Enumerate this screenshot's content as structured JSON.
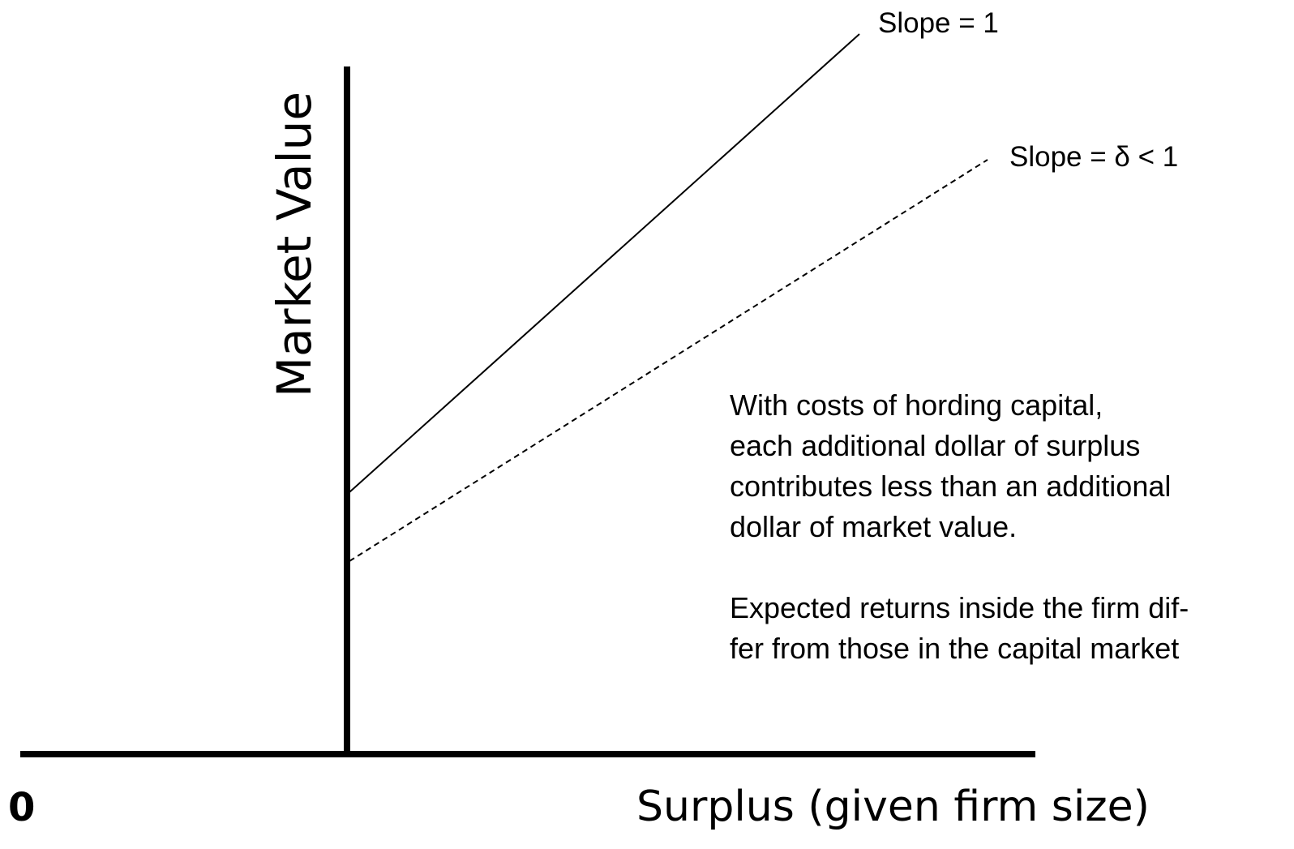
{
  "labels": {
    "slope_one": "Slope = 1",
    "slope_delta": "Slope = δ < 1",
    "y_axis": "Market Value",
    "x_axis": "Surplus (given firm size)",
    "origin": "0"
  },
  "note": {
    "paragraphs": [
      [
        "With costs of hording capital,",
        "each additional dollar of surplus",
        "contributes less than an additional",
        "dollar of market value."
      ],
      [
        "Expected returns inside the firm dif-",
        "fer from those in the capital market"
      ]
    ]
  }
}
